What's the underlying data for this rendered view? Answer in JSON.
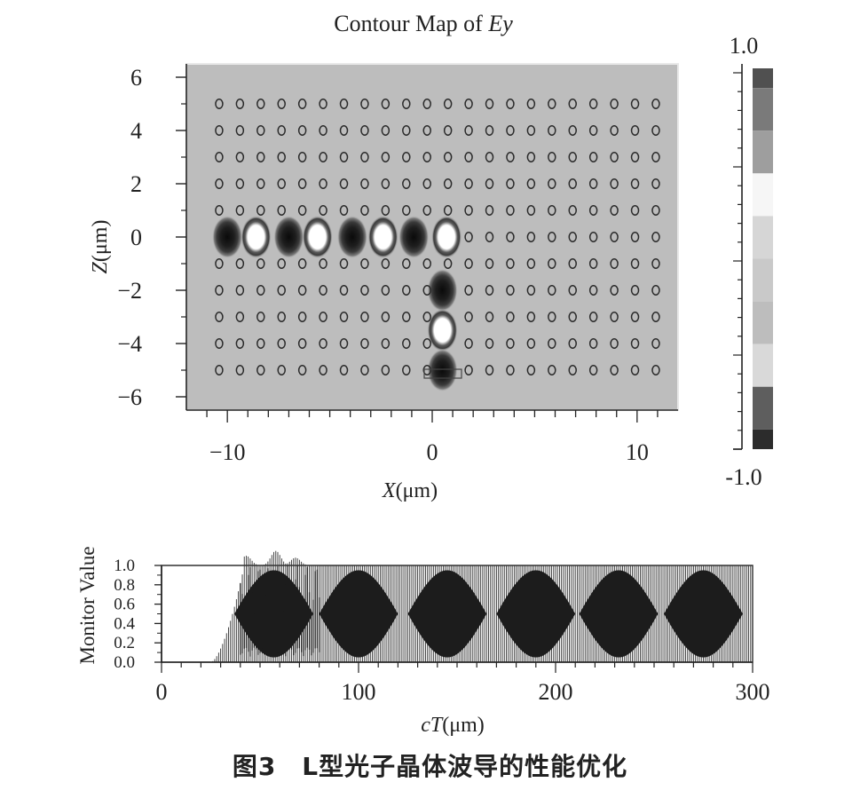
{
  "chart_data": [
    {
      "type": "heatmap",
      "title": "Contour Map of Ey",
      "xlabel": "X(μm)",
      "ylabel": "Z(μm)",
      "xlim": [
        -12,
        12
      ],
      "ylim": [
        -6.5,
        6.5
      ],
      "x_ticks": [
        -10,
        0,
        10
      ],
      "y_ticks": [
        6,
        4,
        2,
        0,
        -2,
        -4,
        -6
      ],
      "colorbar": {
        "max_label": "1.0",
        "min_label": "-1.0"
      },
      "lattice": {
        "x_start": -10.4,
        "x_step": 1.015,
        "count_x": 22,
        "z_values": [
          5,
          4,
          3,
          2,
          1,
          0,
          -1,
          -2,
          -3,
          -4,
          -5
        ],
        "z_unit_step": 1.0
      },
      "field_spots": [
        {
          "x": -10.0,
          "z": 0,
          "sign": -1
        },
        {
          "x": -8.6,
          "z": 0,
          "sign": 1
        },
        {
          "x": -7.0,
          "z": 0,
          "sign": -1
        },
        {
          "x": -5.6,
          "z": 0,
          "sign": 1
        },
        {
          "x": -3.9,
          "z": 0,
          "sign": -1
        },
        {
          "x": -2.4,
          "z": 0,
          "sign": 1
        },
        {
          "x": -0.9,
          "z": 0,
          "sign": -1
        },
        {
          "x": 0.7,
          "z": 0,
          "sign": 1
        },
        {
          "x": 0.5,
          "z": -2,
          "sign": -1
        },
        {
          "x": 0.5,
          "z": -3.5,
          "sign": 1
        },
        {
          "x": 0.5,
          "z": -5,
          "sign": -1
        }
      ]
    },
    {
      "type": "bar",
      "xlabel": "cT(μm)",
      "ylabel": "Monitor Value",
      "xlim": [
        0,
        300
      ],
      "ylim": [
        0,
        1.0
      ],
      "x_ticks": [
        0,
        100,
        200,
        300
      ],
      "y_ticks": [
        "1.0",
        "0.8",
        "0.6",
        "0.4",
        "0.2",
        "0.0"
      ],
      "envelope": {
        "onset_start": 25,
        "onset_full": 42,
        "upper": 1.0,
        "peaks": [
          {
            "x": 43,
            "value": 1.1
          },
          {
            "x": 58,
            "value": 1.15
          },
          {
            "x": 68,
            "value": 1.08
          }
        ],
        "beat_centers": [
          57,
          100,
          145,
          190,
          232,
          275
        ],
        "beat_halfwidth": 20,
        "beat_low": 0.0,
        "beat_high": 0.95
      }
    }
  ],
  "caption": "图3　L型光子晶体波导的性能优化"
}
